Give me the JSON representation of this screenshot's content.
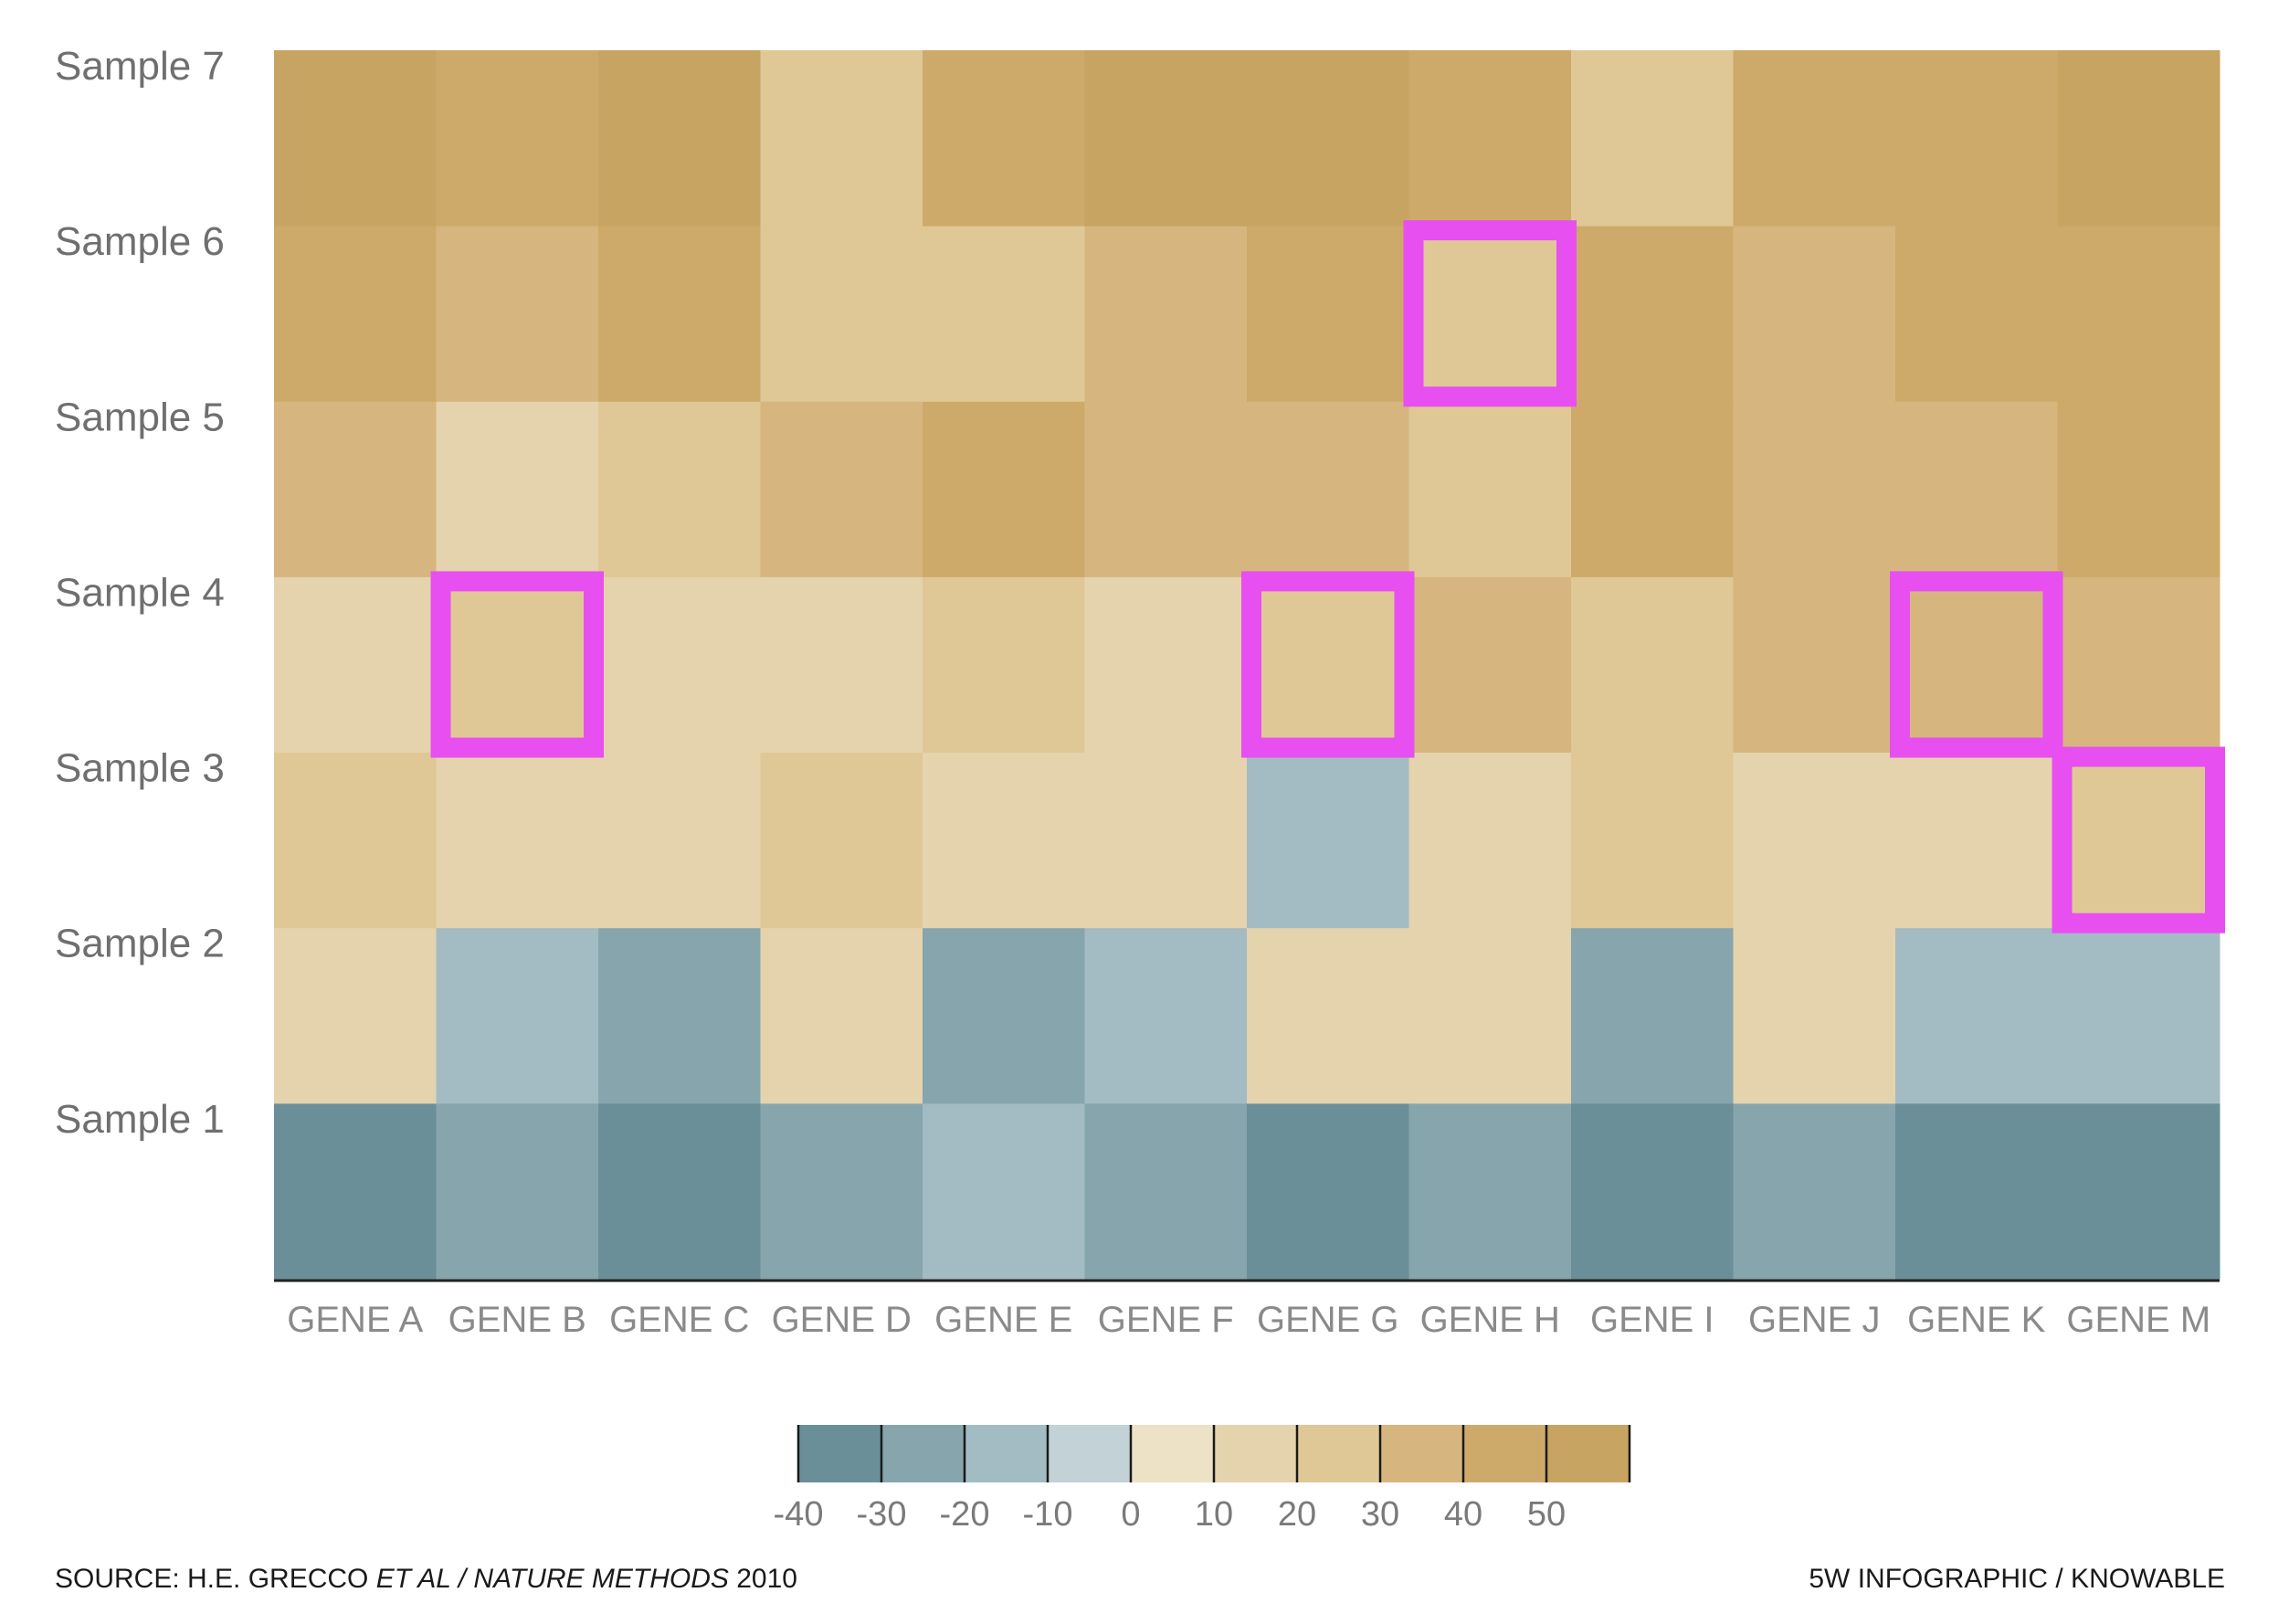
{
  "chart_data": {
    "type": "heatmap",
    "rows": [
      "Sample 1",
      "Sample 2",
      "Sample 3",
      "Sample 4",
      "Sample 5",
      "Sample 6",
      "Sample 7"
    ],
    "columns": [
      "GENE A",
      "GENE B",
      "GENE C",
      "GENE D",
      "GENE E",
      "GENE F",
      "GENE G",
      "GENE H",
      "GENE I",
      "GENE J",
      "GENE K",
      "GENE M"
    ],
    "values": [
      [
        -40,
        -25,
        -35,
        -25,
        -15,
        -25,
        -35,
        -25,
        -35,
        -25,
        -35,
        -40
      ],
      [
        5,
        -15,
        -25,
        5,
        -25,
        -15,
        5,
        5,
        -25,
        5,
        -15,
        -15
      ],
      [
        15,
        5,
        5,
        15,
        5,
        5,
        -15,
        5,
        15,
        5,
        5,
        15
      ],
      [
        5,
        15,
        5,
        5,
        15,
        5,
        15,
        25,
        15,
        25,
        25,
        25
      ],
      [
        25,
        5,
        15,
        25,
        35,
        25,
        25,
        15,
        35,
        25,
        25,
        35
      ],
      [
        35,
        25,
        35,
        15,
        15,
        25,
        35,
        15,
        35,
        25,
        35,
        35
      ],
      [
        45,
        35,
        45,
        15,
        35,
        45,
        45,
        35,
        15,
        35,
        35,
        45
      ]
    ],
    "highlighted_cells": [
      {
        "row": "Sample 6",
        "column": "GENE H"
      },
      {
        "row": "Sample 4",
        "column": "GENE B"
      },
      {
        "row": "Sample 4",
        "column": "GENE G"
      },
      {
        "row": "Sample 4",
        "column": "GENE K"
      },
      {
        "row": "Sample 3",
        "column": "GENE M"
      }
    ],
    "highlight_color": "#e84ff0",
    "colorbar": {
      "ticks": [
        "-40",
        "-30",
        "-20",
        "-10",
        "0",
        "10",
        "20",
        "30",
        "40",
        "50"
      ],
      "range": [
        -40,
        50
      ],
      "colors": [
        "#6a8f99",
        "#86a5ad",
        "#a3bbc2",
        "#c2d2d6",
        "#ede2c6",
        "#e5d3ad",
        "#dfc896",
        "#d6b67e",
        "#ceaa6a",
        "#c8a462"
      ]
    },
    "legend_position": "bottom-center"
  },
  "footer": {
    "source_prefix": "SOURCE: H.E. GRECCO ",
    "source_italic": "ET AL / NATURE METHODS",
    "source_year": " 2010",
    "credit": "5W INFOGRAPHIC / KNOWABLE"
  }
}
